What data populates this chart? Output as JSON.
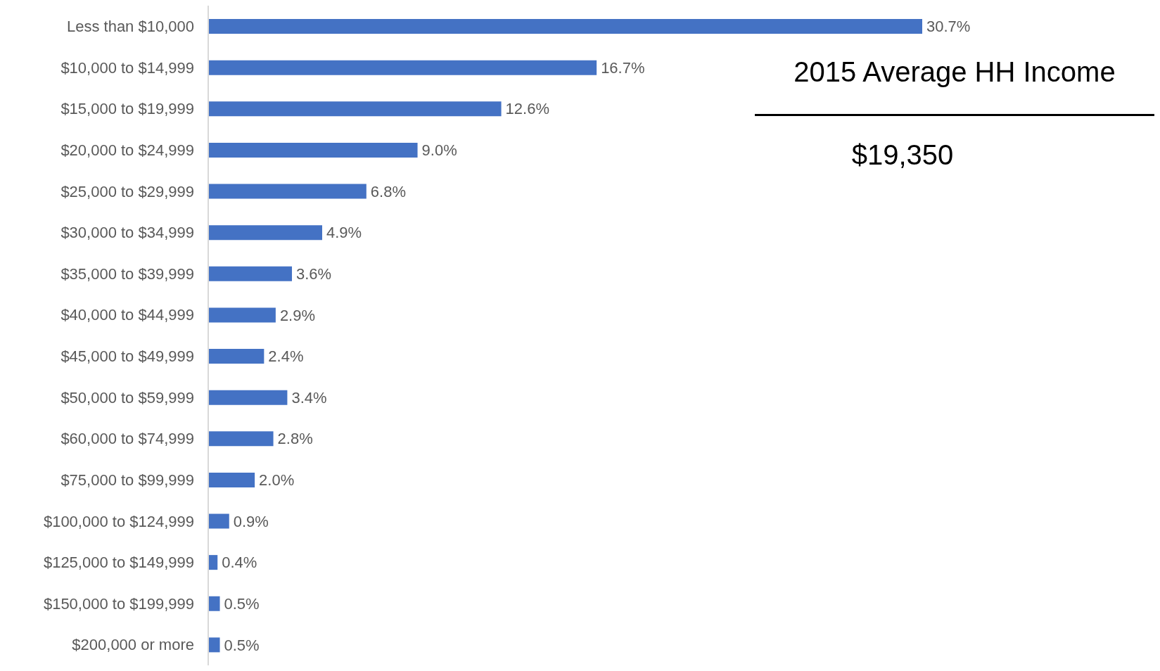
{
  "chart_data": {
    "type": "bar",
    "orientation": "horizontal",
    "color": "#4472c4",
    "categories": [
      "Less than $10,000",
      "$10,000 to $14,999",
      "$15,000 to $19,999",
      "$20,000 to $24,999",
      "$25,000 to $29,999",
      "$30,000 to $34,999",
      "$35,000 to $39,999",
      "$40,000 to $44,999",
      "$45,000 to $49,999",
      "$50,000 to $59,999",
      "$60,000 to $74,999",
      "$75,000 to $99,999",
      "$100,000 to $124,999",
      "$125,000 to $149,999",
      "$150,000 to $199,999",
      "$200,000 or more"
    ],
    "values": [
      30.7,
      16.7,
      12.6,
      9.0,
      6.8,
      4.9,
      3.6,
      2.9,
      2.4,
      3.4,
      2.8,
      2.0,
      0.9,
      0.4,
      0.5,
      0.5
    ],
    "value_labels": [
      "30.7%",
      "16.7%",
      "12.6%",
      "9.0%",
      "6.8%",
      "4.9%",
      "3.6%",
      "2.9%",
      "2.4%",
      "3.4%",
      "2.8%",
      "2.0%",
      "0.9%",
      "0.4%",
      "0.5%",
      "0.5%"
    ],
    "annotations": [
      "2015 Average HH Income",
      "$19,350"
    ]
  }
}
